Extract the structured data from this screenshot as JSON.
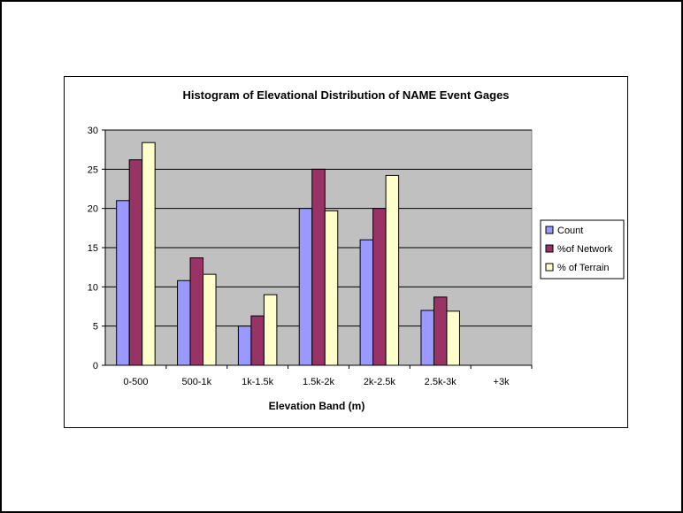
{
  "chart_data": {
    "type": "bar",
    "title": "Histogram of Elevational Distribution of NAME Event Gages",
    "xlabel": "Elevation Band (m)",
    "ylabel": "",
    "ylim": [
      0,
      30
    ],
    "ytick_step": 5,
    "yticks": [
      "0",
      "5",
      "10",
      "15",
      "20",
      "25",
      "30"
    ],
    "categories": [
      "0-500",
      "500-1k",
      "1k-1.5k",
      "1.5k-2k",
      "2k-2.5k",
      "2.5k-3k",
      "+3k"
    ],
    "series": [
      {
        "name": "Count",
        "color": "#9999ff",
        "values": [
          21,
          10.8,
          5,
          20,
          16,
          7,
          0
        ]
      },
      {
        "name": "%of Network",
        "color": "#993366",
        "values": [
          26.2,
          13.7,
          6.3,
          25,
          20,
          8.7,
          0
        ]
      },
      {
        "name": "% of Terrain",
        "color": "#ffffcc",
        "values": [
          28.4,
          11.6,
          9,
          19.7,
          24.2,
          6.9,
          0
        ]
      }
    ],
    "grid": true,
    "legend_position": "right",
    "plot_background": "#c0c0c0"
  }
}
